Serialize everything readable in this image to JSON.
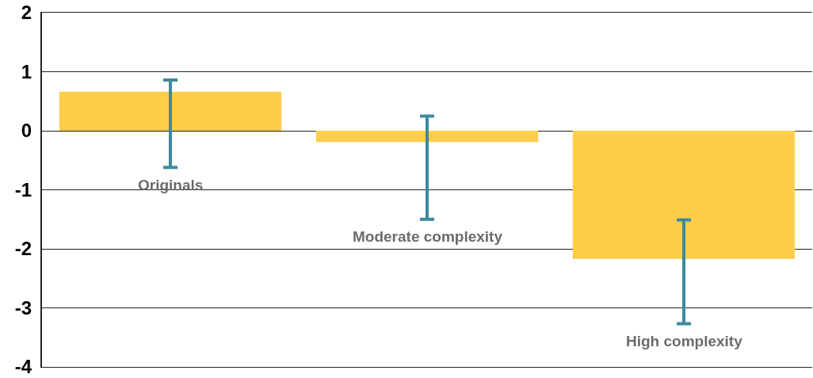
{
  "chart_data": {
    "type": "bar",
    "categories": [
      "Originals",
      "Moderate complexity",
      "High complexity"
    ],
    "values": [
      0.66,
      -0.19,
      -2.17
    ],
    "errors": [
      [
        -0.62,
        0.86
      ],
      [
        -1.5,
        0.25
      ],
      [
        -3.27,
        -1.51
      ]
    ],
    "color": "#ffcd4a",
    "ylim": [
      -4,
      2
    ],
    "yticks": [
      -4,
      -3,
      -2,
      -1,
      0,
      1,
      2
    ],
    "grid": "y",
    "tick_labels": "y",
    "legend": false
  }
}
